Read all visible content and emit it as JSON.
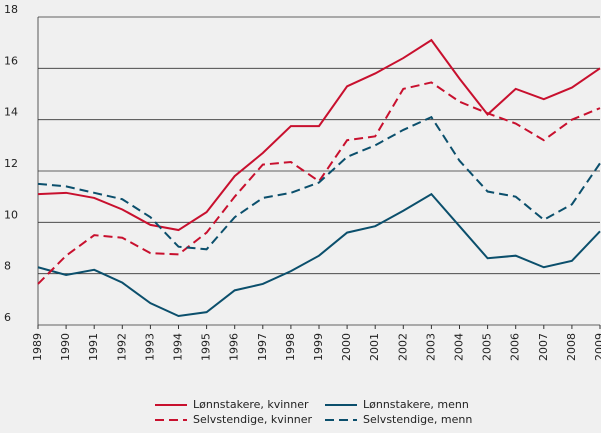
{
  "chart_data": {
    "type": "line",
    "x": [
      1989,
      1990,
      1991,
      1992,
      1993,
      1994,
      1995,
      1996,
      1997,
      1998,
      1999,
      2000,
      2001,
      2002,
      2003,
      2004,
      2005,
      2006,
      2007,
      2008,
      2009
    ],
    "xlim": [
      1989,
      2009
    ],
    "ylim": [
      6,
      18
    ],
    "yticks": [
      6,
      8,
      10,
      12,
      14,
      16,
      18
    ],
    "grid": true,
    "legend": "bottom",
    "series": [
      {
        "name": "Lønnstakere, kvinner",
        "color": "#c8102e",
        "line_style": "solid",
        "values": [
          11.1,
          11.15,
          10.95,
          10.5,
          9.9,
          9.7,
          10.4,
          11.8,
          12.7,
          13.75,
          13.75,
          15.3,
          15.8,
          16.4,
          17.1,
          15.6,
          14.2,
          15.2,
          14.8,
          15.25,
          16.0
        ]
      },
      {
        "name": "Lønnstakere, menn",
        "color": "#0b4f6c",
        "line_style": "solid",
        "values": [
          8.25,
          7.95,
          8.15,
          7.65,
          6.85,
          6.35,
          6.5,
          7.35,
          7.6,
          8.1,
          8.7,
          9.6,
          9.85,
          10.45,
          11.1,
          9.85,
          8.6,
          8.7,
          8.25,
          8.5,
          9.65
        ]
      },
      {
        "name": "Selvstendige, kvinner",
        "color": "#c8102e",
        "line_style": "dashed",
        "values": [
          7.6,
          8.7,
          9.5,
          9.4,
          8.8,
          8.75,
          9.6,
          11.0,
          12.25,
          12.35,
          11.6,
          13.2,
          13.35,
          15.2,
          15.45,
          14.7,
          14.25,
          13.85,
          13.2,
          14.0,
          14.45
        ]
      },
      {
        "name": "Selvstendige, menn",
        "color": "#0b4f6c",
        "line_style": "dashed",
        "values": [
          11.5,
          11.4,
          11.15,
          10.9,
          10.2,
          9.05,
          8.95,
          10.2,
          10.95,
          11.15,
          11.55,
          12.55,
          13.0,
          13.6,
          14.1,
          12.4,
          11.2,
          11.0,
          10.1,
          10.7,
          12.3
        ]
      }
    ]
  }
}
